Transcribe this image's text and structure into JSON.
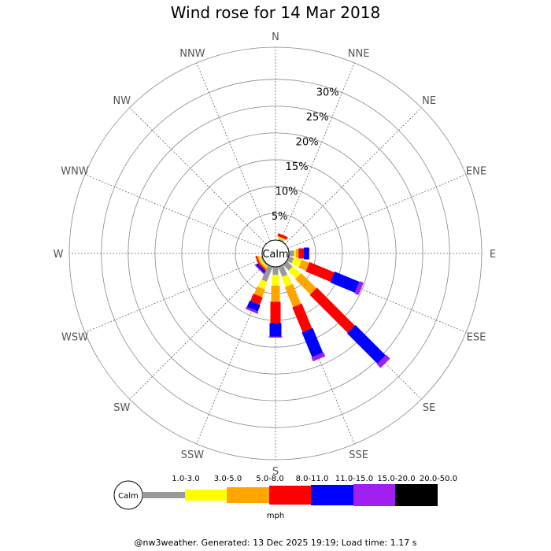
{
  "title": "Wind rose for 14 Mar 2018",
  "footer": "@nw3weather.  Generated: 13 Dec 2025 19:19; Load time: 1.17 s",
  "chart_data": {
    "type": "wind-rose",
    "title": "Wind rose for 14 Mar 2018",
    "directions": [
      "N",
      "NNE",
      "NE",
      "ENE",
      "E",
      "ESE",
      "SE",
      "SSE",
      "S",
      "SSW",
      "SW",
      "WSW",
      "W",
      "WNW",
      "NW",
      "NNW"
    ],
    "radial_ticks": [
      "5%",
      "10%",
      "15%",
      "20%",
      "25%",
      "30%"
    ],
    "radial_tick_values": [
      5,
      10,
      15,
      20,
      25,
      30
    ],
    "rmax": 36,
    "calm_label": "Calm",
    "unit": "mph",
    "speed_bins": [
      {
        "label": "1.0-3.0",
        "color": "#999999"
      },
      {
        "label": "3.0-5.0",
        "color": "#ffff00"
      },
      {
        "label": "5.0-8.0",
        "color": "#ffa500"
      },
      {
        "label": "8.0-11.0",
        "color": "#ff0000"
      },
      {
        "label": "11.0-15.0",
        "color": "#0000ff"
      },
      {
        "label": "15.0-20.0",
        "color": "#a020f0"
      },
      {
        "label": "20.0-50.0",
        "color": "#000000"
      }
    ],
    "series": [
      {
        "direction": "NNE",
        "values": [
          0.3,
          0.2,
          0.2,
          0.5,
          0,
          0,
          0
        ]
      },
      {
        "direction": "E",
        "values": [
          1,
          0.3,
          0.5,
          1,
          1,
          0,
          0
        ]
      },
      {
        "direction": "ESE",
        "values": [
          1,
          1.5,
          1.5,
          5,
          5,
          0.8,
          0
        ]
      },
      {
        "direction": "SE",
        "values": [
          1.5,
          2,
          4,
          10,
          8,
          1,
          0
        ]
      },
      {
        "direction": "SSE",
        "values": [
          2,
          2,
          4,
          5,
          5,
          0.8,
          0
        ]
      },
      {
        "direction": "S",
        "values": [
          1.5,
          2,
          3,
          4,
          2.5,
          0.2,
          0
        ]
      },
      {
        "direction": "SSW",
        "values": [
          3,
          1.5,
          1.5,
          1.5,
          1.3,
          0.4,
          0
        ]
      },
      {
        "direction": "SW",
        "values": [
          0.3,
          0.3,
          0.3,
          0.3,
          0.4,
          0.2,
          0
        ]
      },
      {
        "direction": "WSW",
        "values": [
          0.3,
          0.3,
          0.3,
          0.3,
          0,
          0,
          0
        ]
      }
    ]
  }
}
